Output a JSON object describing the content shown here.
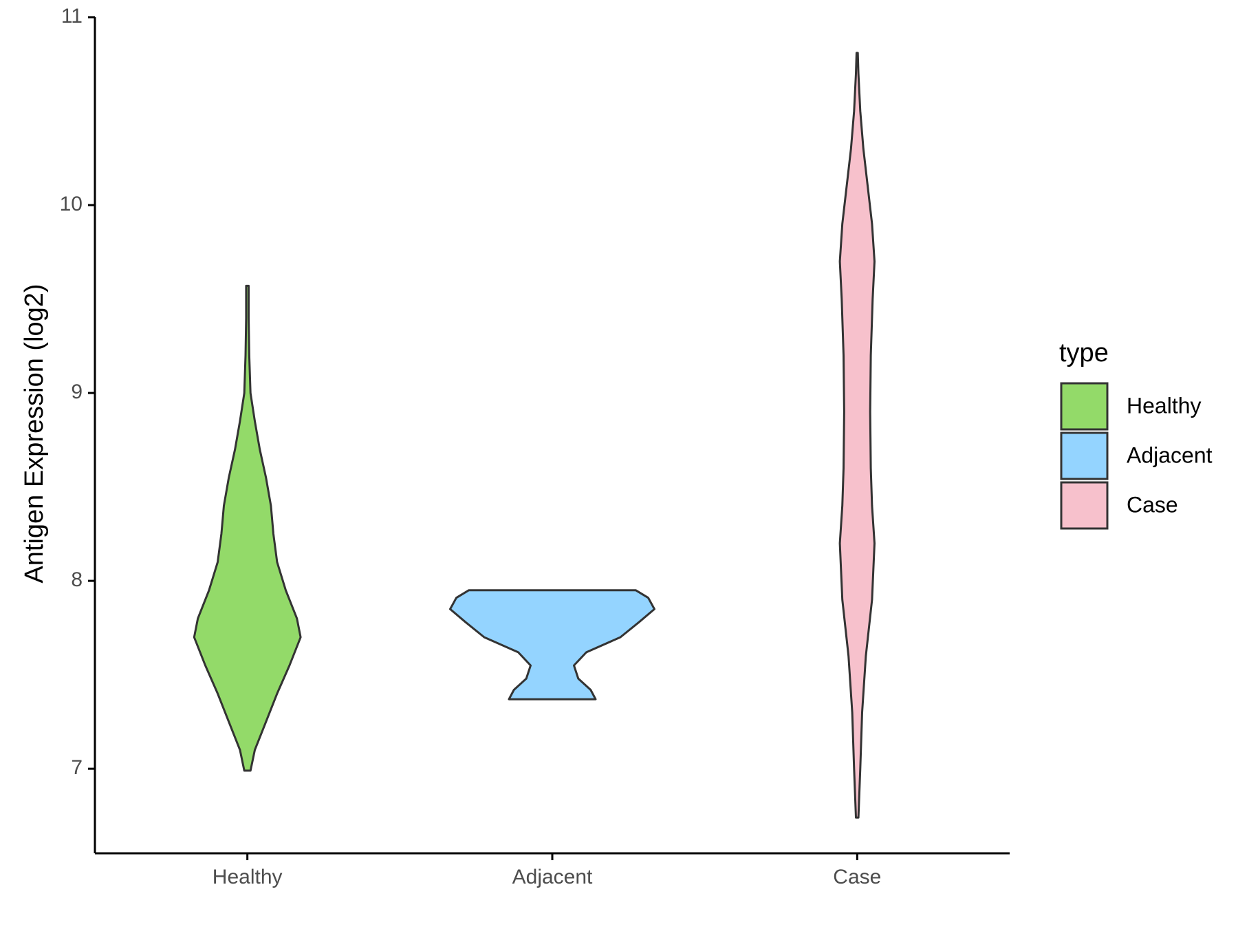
{
  "chart_data": {
    "type": "violin",
    "title": "",
    "xlabel": "",
    "ylabel": "Antigen Expression (log2)",
    "ylim": [
      6.55,
      11.0
    ],
    "yticks": [
      7,
      8,
      9,
      10,
      11
    ],
    "categories": [
      "Healthy",
      "Adjacent",
      "Case"
    ],
    "grid": false,
    "legend": {
      "title": "type",
      "placement": "right",
      "entries": [
        {
          "label": "Healthy",
          "color": "#93DA69"
        },
        {
          "label": "Adjacent",
          "color": "#94D4FF"
        },
        {
          "label": "Case",
          "color": "#F7C1CC"
        }
      ]
    },
    "series": [
      {
        "name": "Healthy",
        "color": "#93DA69",
        "min": 6.99,
        "max": 9.57,
        "profile": [
          [
            6.99,
            0.05
          ],
          [
            7.1,
            0.12
          ],
          [
            7.25,
            0.3
          ],
          [
            7.4,
            0.48
          ],
          [
            7.55,
            0.68
          ],
          [
            7.7,
            0.86
          ],
          [
            7.8,
            0.8
          ],
          [
            7.95,
            0.62
          ],
          [
            8.1,
            0.48
          ],
          [
            8.25,
            0.42
          ],
          [
            8.4,
            0.38
          ],
          [
            8.55,
            0.3
          ],
          [
            8.7,
            0.2
          ],
          [
            8.85,
            0.12
          ],
          [
            9.0,
            0.05
          ],
          [
            9.2,
            0.03
          ],
          [
            9.4,
            0.02
          ],
          [
            9.57,
            0.02
          ]
        ]
      },
      {
        "name": "Adjacent",
        "color": "#94D4FF",
        "min": 7.37,
        "max": 7.95,
        "profile": [
          [
            7.37,
            0.7
          ],
          [
            7.42,
            0.62
          ],
          [
            7.48,
            0.42
          ],
          [
            7.55,
            0.35
          ],
          [
            7.62,
            0.55
          ],
          [
            7.7,
            1.1
          ],
          [
            7.78,
            1.4
          ],
          [
            7.85,
            1.65
          ],
          [
            7.91,
            1.55
          ],
          [
            7.95,
            1.35
          ]
        ]
      },
      {
        "name": "Case",
        "color": "#F7C1CC",
        "min": 6.74,
        "max": 10.81,
        "profile": [
          [
            6.74,
            0.02
          ],
          [
            7.0,
            0.05
          ],
          [
            7.3,
            0.08
          ],
          [
            7.6,
            0.14
          ],
          [
            7.9,
            0.24
          ],
          [
            8.2,
            0.28
          ],
          [
            8.4,
            0.24
          ],
          [
            8.6,
            0.22
          ],
          [
            8.9,
            0.21
          ],
          [
            9.2,
            0.22
          ],
          [
            9.5,
            0.25
          ],
          [
            9.7,
            0.28
          ],
          [
            9.9,
            0.24
          ],
          [
            10.1,
            0.17
          ],
          [
            10.3,
            0.1
          ],
          [
            10.5,
            0.05
          ],
          [
            10.7,
            0.02
          ],
          [
            10.81,
            0.01
          ]
        ]
      }
    ]
  }
}
